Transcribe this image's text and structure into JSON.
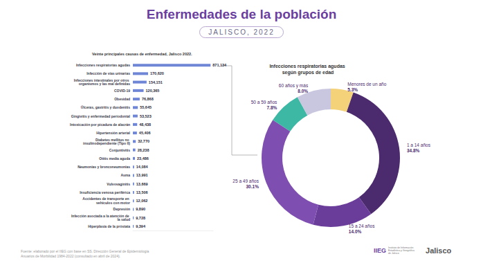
{
  "header": {
    "title": "Enfermedades de la población",
    "subtitle": "JALISCO, 2022"
  },
  "chart_data": [
    {
      "type": "bar",
      "title": "Veinte principales causas de enfermedad, Jalisco 2022.",
      "orientation": "horizontal",
      "categories": [
        "Infecciones respiratorias agudas",
        "Infección de vías urinarias",
        "Infecciones intestinales por otros organismos y las mal definidas",
        "COVID-19",
        "Obesidad",
        "Úlceras, gastritis y duodenitis",
        "Gingivitis y enfermedad periodontal",
        "Intoxicación por picadura de alacrán",
        "Hipertensión arterial",
        "Diabetes mellitus no insulinodependiente (Tipo II)",
        "Conjuntivitis",
        "Otitis media aguda",
        "Neumonías y bronconeumonías",
        "Asma",
        "Vulvovaginitis",
        "Insuficiencia venosa periférica",
        "Accidentes de transporte en vehículos con motor",
        "Depresión",
        "Infección asociada a la atención de la salud",
        "Hiperplasia de la próstata"
      ],
      "values": [
        871134,
        170620,
        154151,
        120365,
        76868,
        55645,
        53523,
        48438,
        45406,
        32770,
        28238,
        23486,
        14084,
        13991,
        13669,
        13506,
        12062,
        9890,
        9728,
        9394
      ],
      "value_labels": [
        "871,134",
        "170,620",
        "154,151",
        "120,365",
        "76,868",
        "55,645",
        "53,523",
        "48,438",
        "45,406",
        "32,770",
        "28,238",
        "23,486",
        "14,084",
        "13,991",
        "13,669",
        "13,506",
        "12,062",
        "9,890",
        "9,728",
        "9,394"
      ],
      "color": "#6f86d6",
      "xlim": [
        0,
        900000
      ],
      "grid": false,
      "data_labels": true,
      "tick_labels": "y"
    },
    {
      "type": "pie",
      "title": "Infecciones respiratorias agudas según grupos de edad",
      "categories": [
        "Menores de un año",
        "1 a 14 años",
        "15 a 24 años",
        "25 a 49 años",
        "50 a 59 años",
        "60 años y más"
      ],
      "values": [
        5.3,
        34.8,
        14.0,
        30.1,
        7.8,
        8.0
      ],
      "value_labels": [
        "5.3%",
        "34.8%",
        "14.0%",
        "30.1%",
        "7.8%",
        "8.0%"
      ],
      "colors": [
        "#f4d27a",
        "#4b2a6e",
        "#6a3d9a",
        "#7e4fb0",
        "#3cb8a4",
        "#c9c7df"
      ],
      "data_labels": true
    }
  ],
  "footer": {
    "source": [
      "Fuente: elaborado por el IIEG con base en SS. Dirección General de Epidemiología",
      "Anuarios de Morbilidad 1984-2022 (consultado en abril de 2024)."
    ],
    "logos": [
      "IIEG",
      "Instituto de Información Estadística y Geográfica de Jalisco",
      "Jalisco"
    ]
  }
}
